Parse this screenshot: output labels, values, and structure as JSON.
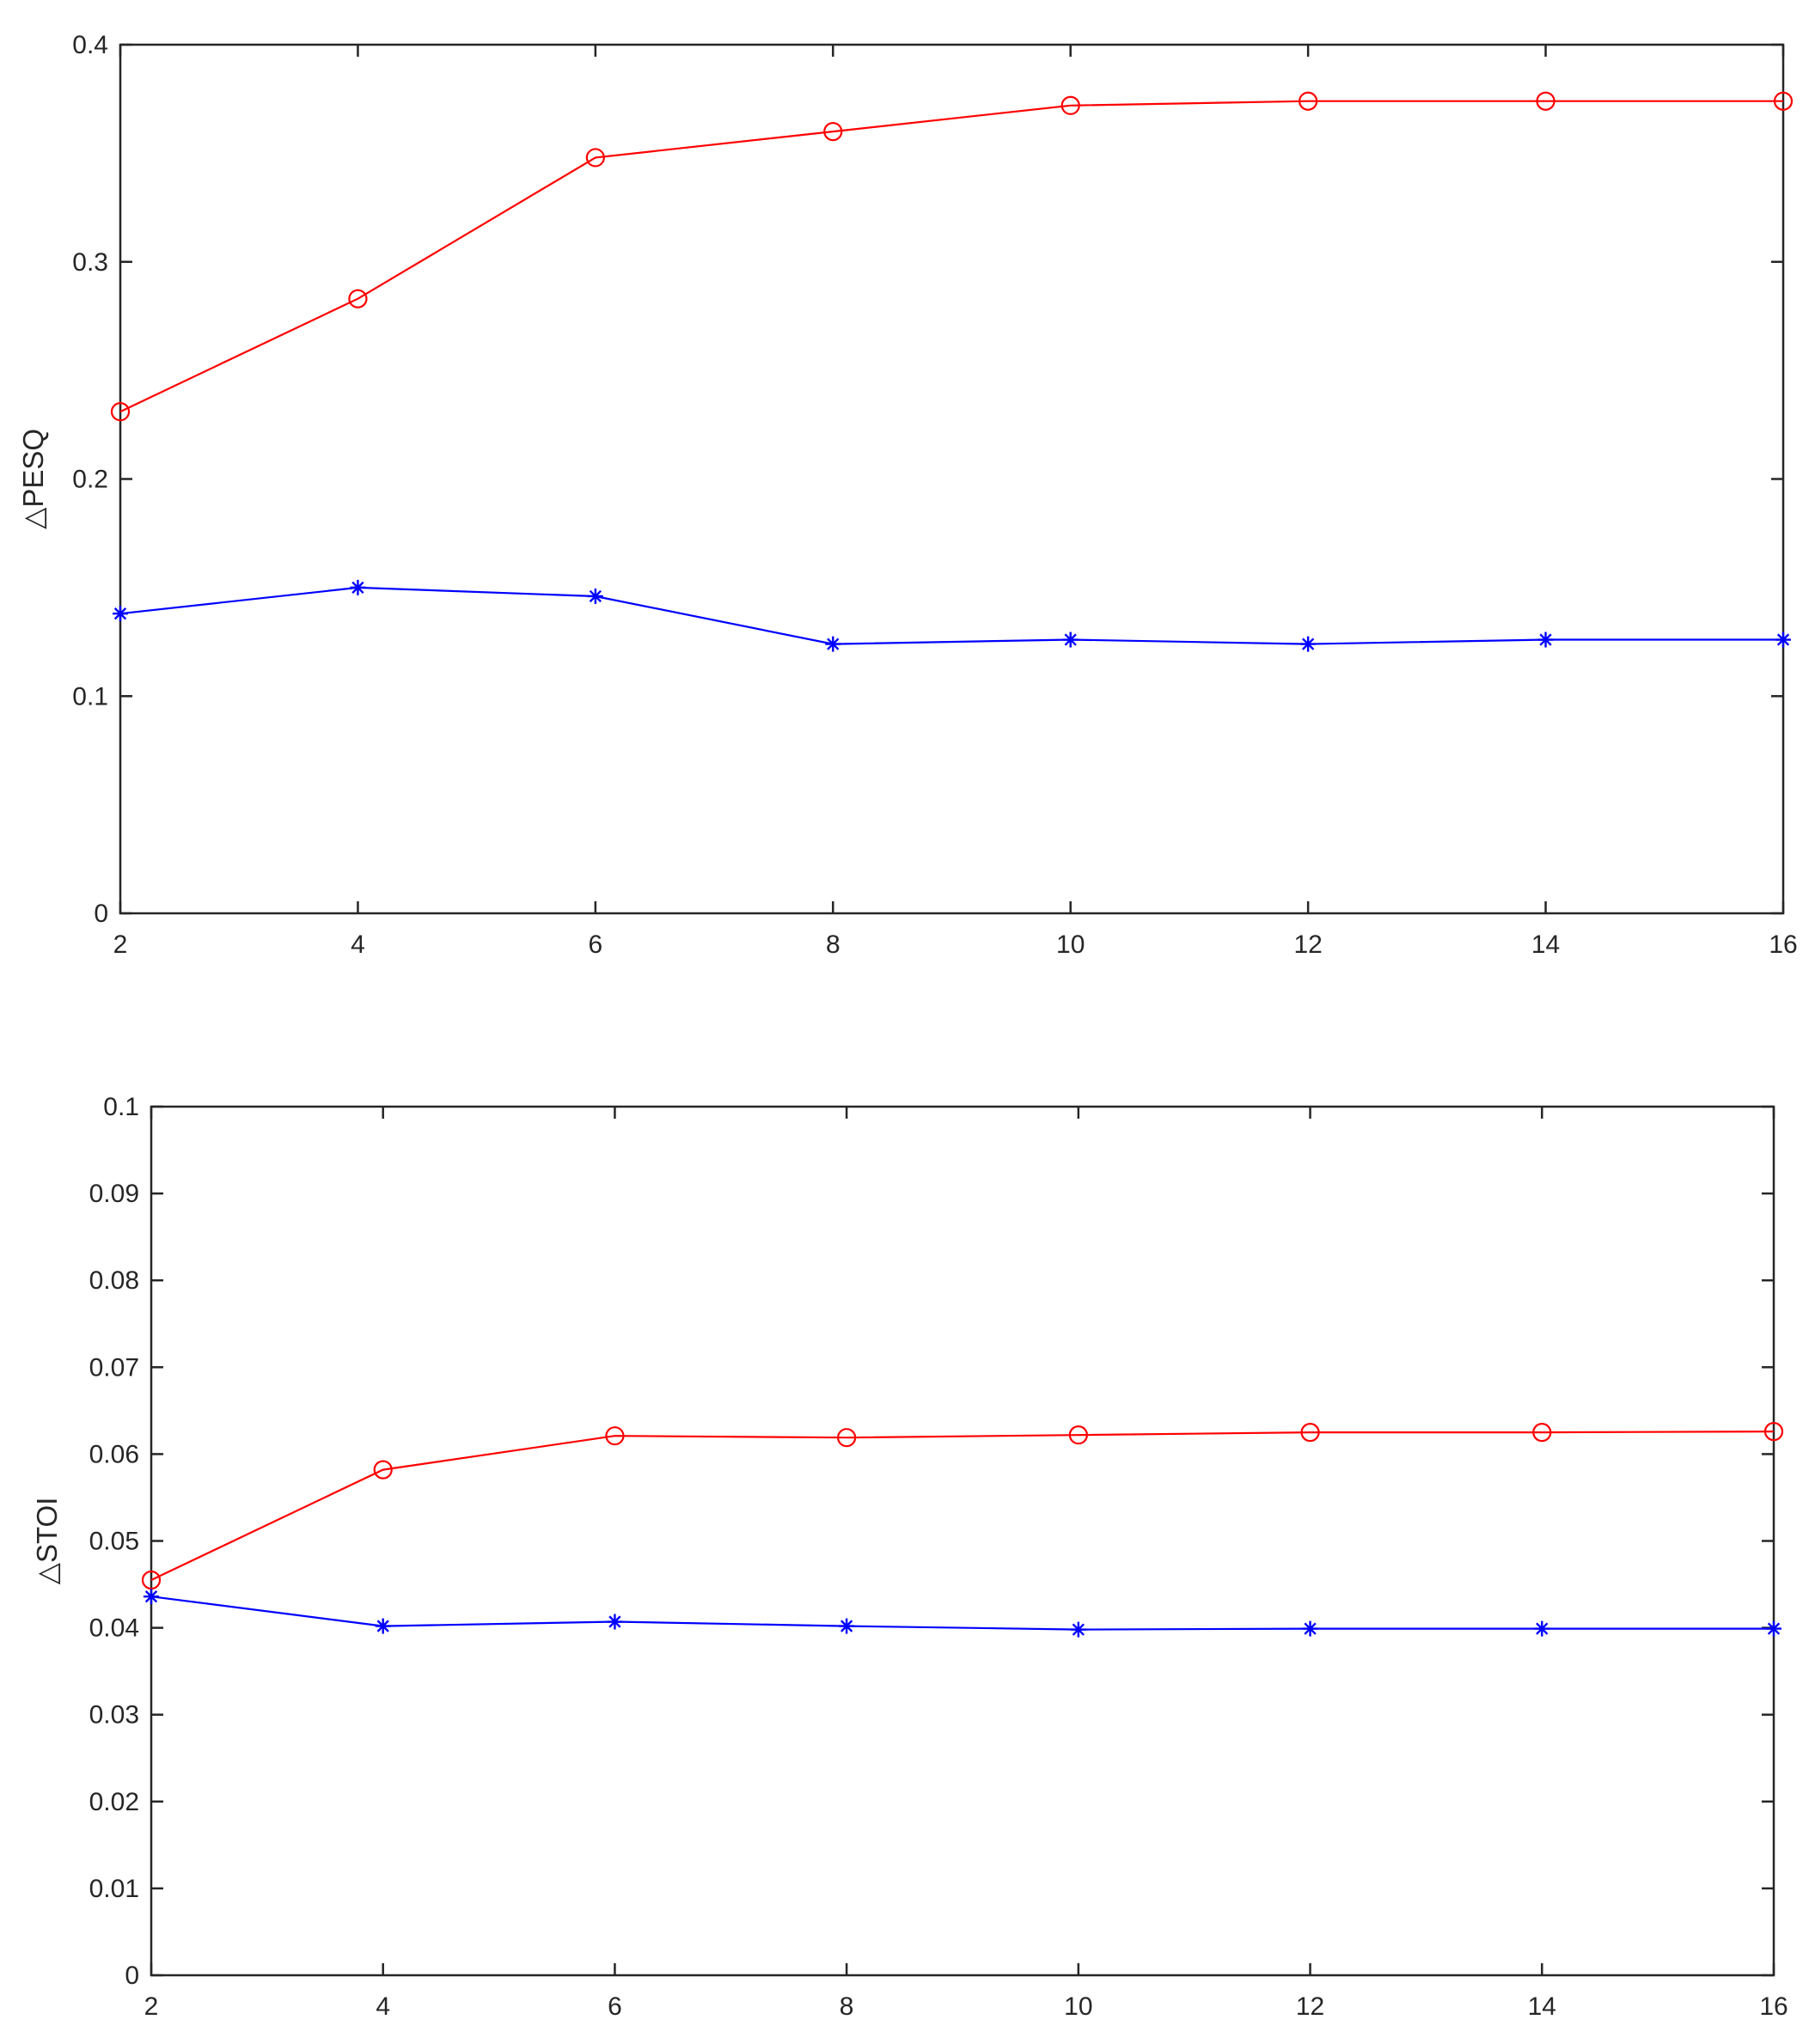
{
  "chart_data": [
    {
      "type": "line",
      "title": "",
      "xlabel": "",
      "ylabel": "△PESQ",
      "xlim": [
        2,
        16
      ],
      "ylim": [
        0,
        0.4
      ],
      "x_ticks": [
        2,
        4,
        6,
        8,
        10,
        12,
        14,
        16
      ],
      "x_tick_labels": [
        "2",
        "4",
        "6",
        "8",
        "10",
        "12",
        "14",
        "16"
      ],
      "y_ticks": [
        0,
        0.1,
        0.2,
        0.3,
        0.4
      ],
      "y_tick_labels": [
        "0",
        "0.1",
        "0.2",
        "0.3",
        "0.4"
      ],
      "grid": false,
      "x": [
        2,
        4,
        6,
        8,
        10,
        12,
        14,
        16
      ],
      "series": [
        {
          "values": [
            0.231,
            0.283,
            0.348,
            0.36,
            0.372,
            0.374,
            0.374,
            0.374
          ],
          "color": "#ff0000",
          "marker": "circle"
        },
        {
          "values": [
            0.138,
            0.15,
            0.146,
            0.124,
            0.126,
            0.124,
            0.126,
            0.126
          ],
          "color": "#0000ff",
          "marker": "asterisk"
        }
      ]
    },
    {
      "type": "line",
      "title": "",
      "xlabel": "",
      "ylabel": "△STOI",
      "xlim": [
        2,
        16
      ],
      "ylim": [
        0,
        0.1
      ],
      "x_ticks": [
        2,
        4,
        6,
        8,
        10,
        12,
        14,
        16
      ],
      "x_tick_labels": [
        "2",
        "4",
        "6",
        "8",
        "10",
        "12",
        "14",
        "16"
      ],
      "y_ticks": [
        0,
        0.01,
        0.02,
        0.03,
        0.04,
        0.05,
        0.06,
        0.07,
        0.08,
        0.09,
        0.1
      ],
      "y_tick_labels": [
        "0",
        "0.01",
        "0.02",
        "0.03",
        "0.04",
        "0.05",
        "0.06",
        "0.07",
        "0.08",
        "0.09",
        "0.1"
      ],
      "grid": false,
      "x": [
        2,
        4,
        6,
        8,
        10,
        12,
        14,
        16
      ],
      "series": [
        {
          "values": [
            0.0455,
            0.0582,
            0.0621,
            0.0619,
            0.0622,
            0.0625,
            0.0625,
            0.0626
          ],
          "color": "#ff0000",
          "marker": "circle"
        },
        {
          "values": [
            0.0436,
            0.0402,
            0.0407,
            0.0402,
            0.0398,
            0.0399,
            0.0399,
            0.0399
          ],
          "color": "#0000ff",
          "marker": "asterisk"
        }
      ]
    }
  ]
}
